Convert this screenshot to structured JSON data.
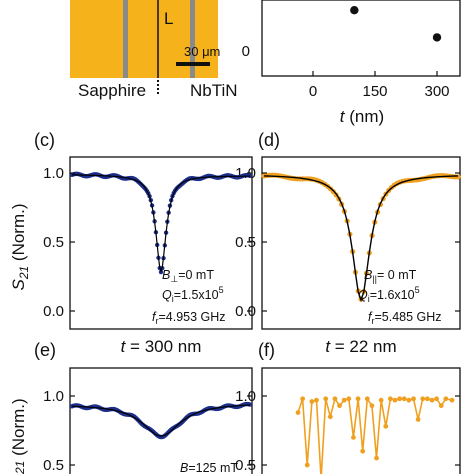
{
  "colors": {
    "nbtin": "#f5b21a",
    "sapphire": "#8a8a8a",
    "dark_series": "#1c2f8c",
    "orange_series": "#f0a020",
    "fit": "#000000"
  },
  "top_left": {
    "l_label": "L",
    "scale_label": "30 μm",
    "sapphire_label": "Sapphire",
    "nbtin_label": "NbTiN"
  },
  "top_right": {
    "xticks": [
      "0",
      "150",
      "300"
    ],
    "yticks": [
      "0"
    ],
    "xlabel_t": "t",
    "xlabel_unit": " (nm)"
  },
  "panel_c": {
    "tag": "(c)",
    "annot_b_main": "B",
    "annot_b_sub": "⊥",
    "annot_b_val": "=0 mT",
    "annot_q_main": "Q",
    "annot_q_sub": "i",
    "annot_q_val": "=1.5x10",
    "annot_q_exp": "5",
    "annot_f_main": "f",
    "annot_f_sub": "r",
    "annot_f_val": "=4.953 GHz"
  },
  "panel_d": {
    "tag": "(d)",
    "annot_b_main": "B",
    "annot_b_sub": "||",
    "annot_b_val": "= 0 mT",
    "annot_q_main": "Q",
    "annot_q_sub": "i",
    "annot_q_val": "=1.6x10",
    "annot_q_exp": "5",
    "annot_f_main": "f",
    "annot_f_sub": "r",
    "annot_f_val": "=5.485 GHz"
  },
  "mid_titles": {
    "left_t": "t",
    "left_val": " = 300 nm",
    "right_t": "t",
    "right_val": " = 22 nm"
  },
  "panel_e": {
    "tag": "(e)",
    "annot_b": "B",
    "annot_b_val": "=125 mT"
  },
  "panel_f": {
    "tag": "(f)"
  },
  "ylabel": {
    "s": "S",
    "sub": "21",
    "rest": " (Norm.)"
  },
  "ytick_labels": [
    "1.0",
    "0.5",
    "0.0"
  ],
  "chart_data": [
    {
      "type": "scatter",
      "panel": "top-right",
      "xlabel": "t (nm)",
      "xlim": [
        -40,
        330
      ],
      "x": [
        100,
        300
      ],
      "y": [
        2.4,
        0.8
      ],
      "yticks": [
        0
      ]
    },
    {
      "type": "line",
      "panel": "c",
      "title": "t = 300 nm",
      "ylabel": "S21 (Norm.)",
      "ylim": [
        0.0,
        1.05
      ],
      "xlim": [
        0,
        1
      ],
      "series": [
        {
          "values_description": "dip",
          "baseline_left": 0.99,
          "baseline_right": 0.98,
          "center": 0.5,
          "width": 0.035,
          "min": 0.29
        }
      ]
    },
    {
      "type": "line",
      "panel": "d",
      "ylim": [
        0.0,
        1.05
      ],
      "xlim": [
        0,
        1
      ],
      "series": [
        {
          "baseline": 0.99,
          "center": 0.5,
          "width": 0.055,
          "min": 0.08
        }
      ]
    },
    {
      "type": "line",
      "panel": "e",
      "ylim": [
        0.0,
        1.05
      ],
      "xlim": [
        0,
        1
      ],
      "series": [
        {
          "baseline_left": 0.94,
          "baseline_right": 0.95,
          "center": 0.5,
          "width": 0.13,
          "min": 0.71
        }
      ]
    },
    {
      "type": "line",
      "panel": "f",
      "ylim": [
        0.0,
        1.05
      ],
      "series": [
        {
          "x": [
            0,
            0.03,
            0.06,
            0.09,
            0.12,
            0.15,
            0.18,
            0.21,
            0.24,
            0.27,
            0.3,
            0.33,
            0.36,
            0.39,
            0.42,
            0.45,
            0.48,
            0.51,
            0.54,
            0.57,
            0.6,
            0.63,
            0.66,
            0.69,
            0.72,
            0.75,
            0.78,
            0.81,
            0.84,
            0.87,
            0.9,
            0.93,
            0.96,
            1.0
          ],
          "y": [
            0.88,
            0.98,
            0.5,
            0.96,
            0.97,
            0.4,
            0.98,
            0.85,
            0.98,
            0.93,
            0.97,
            0.98,
            0.7,
            0.98,
            0.6,
            0.98,
            0.93,
            0.55,
            0.97,
            0.78,
            0.98,
            0.97,
            0.98,
            0.98,
            0.97,
            0.98,
            0.83,
            0.98,
            0.98,
            0.97,
            0.98,
            0.93,
            0.98,
            0.97
          ]
        }
      ]
    }
  ]
}
